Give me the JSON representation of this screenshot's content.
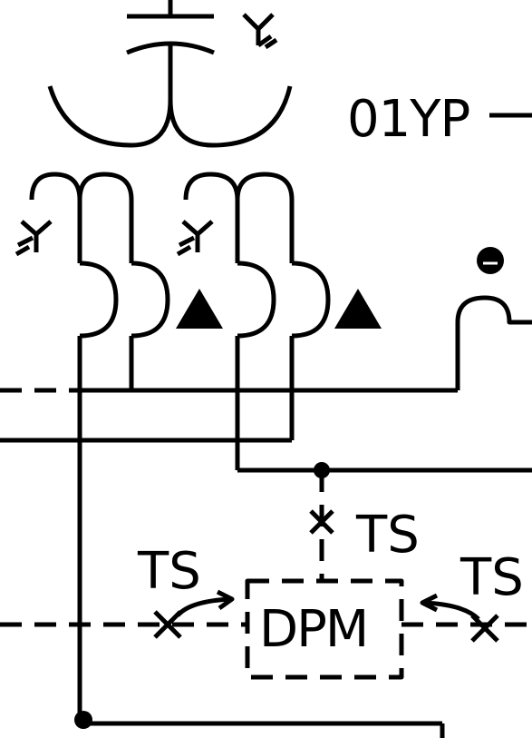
{
  "labels": {
    "device_code": "01YP",
    "ts_center": "TS",
    "ts_left": "TS",
    "ts_right": "TS",
    "dpm": "DPM"
  },
  "colors": {
    "line": "#000000",
    "background": "#ffffff"
  },
  "icons": [
    "wye-ground-icon",
    "delta-icon",
    "capacitor-icon",
    "test-switch-icon",
    "flow-arrow-icon",
    "junction-dot-icon",
    "polarity-dot-icon"
  ]
}
